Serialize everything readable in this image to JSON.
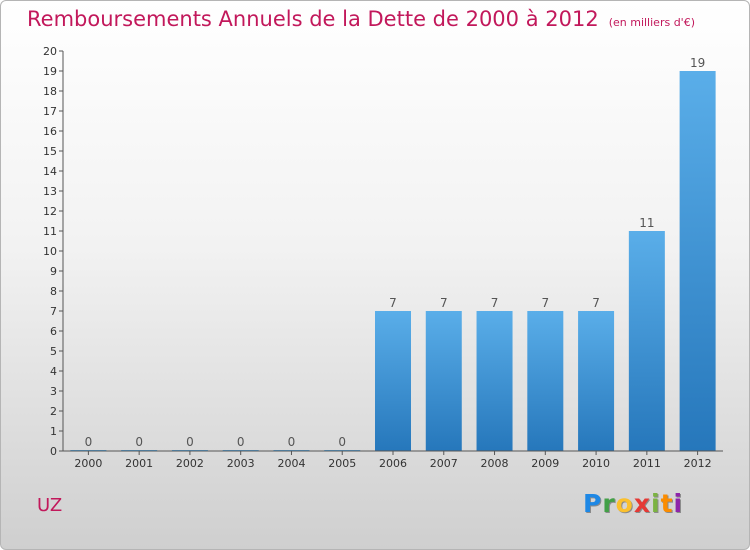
{
  "chart_data": {
    "type": "bar",
    "title": "Remboursements Annuels de la Dette de 2000 à 2012",
    "subtitle": "(en milliers d'€)",
    "categories": [
      "2000",
      "2001",
      "2002",
      "2003",
      "2004",
      "2005",
      "2006",
      "2007",
      "2008",
      "2009",
      "2010",
      "2011",
      "2012"
    ],
    "values": [
      0,
      0,
      0,
      0,
      0,
      0,
      7,
      7,
      7,
      7,
      7,
      11,
      19
    ],
    "xlabel": "",
    "ylabel": "",
    "ylim": [
      0,
      20
    ],
    "yticks": [
      0,
      1,
      2,
      3,
      4,
      5,
      6,
      7,
      8,
      9,
      10,
      11,
      12,
      13,
      14,
      15,
      16,
      17,
      18,
      19,
      20
    ],
    "grid": false,
    "bar_color": "#3f95dc"
  },
  "footer": {
    "commune": "UZ",
    "logo": "Proxiti"
  }
}
